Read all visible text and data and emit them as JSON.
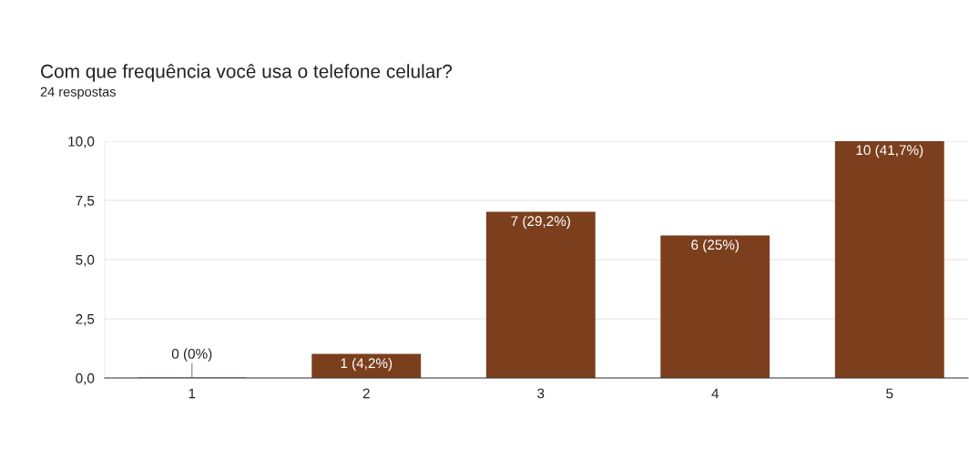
{
  "chart_data": {
    "type": "bar",
    "title": "Com que frequência você usa o telefone celular?",
    "subtitle": "24 respostas",
    "categories": [
      "1",
      "2",
      "3",
      "4",
      "5"
    ],
    "values": [
      0,
      1,
      7,
      6,
      10
    ],
    "value_labels": [
      "0 (0%)",
      "1 (4,2%)",
      "7 (29,2%)",
      "6 (25%)",
      "10 (41,7%)"
    ],
    "color": "#7b3f1e",
    "ylim": [
      0,
      10
    ],
    "yticks": [
      {
        "value": 0,
        "label": "0,0"
      },
      {
        "value": 2.5,
        "label": "2,5"
      },
      {
        "value": 5,
        "label": "5,0"
      },
      {
        "value": 7.5,
        "label": "7,5"
      },
      {
        "value": 10,
        "label": "10,0"
      }
    ],
    "grid": "y",
    "legend": false
  }
}
